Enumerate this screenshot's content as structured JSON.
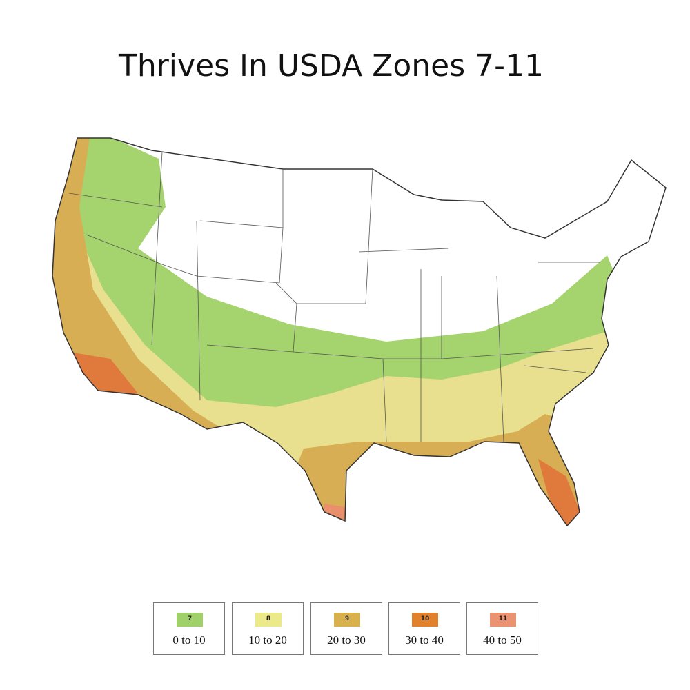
{
  "title": "Thrives In USDA Zones 7-11",
  "legend": {
    "items": [
      {
        "zone": "7",
        "range": "0 to 10",
        "color": "#9fd069"
      },
      {
        "zone": "8",
        "range": "10 to 20",
        "color": "#ece98a"
      },
      {
        "zone": "9",
        "range": "20 to 30",
        "color": "#d8b04c"
      },
      {
        "zone": "10",
        "range": "30 to 40",
        "color": "#e2812c"
      },
      {
        "zone": "11",
        "range": "40 to 50",
        "color": "#eb9271"
      }
    ]
  }
}
